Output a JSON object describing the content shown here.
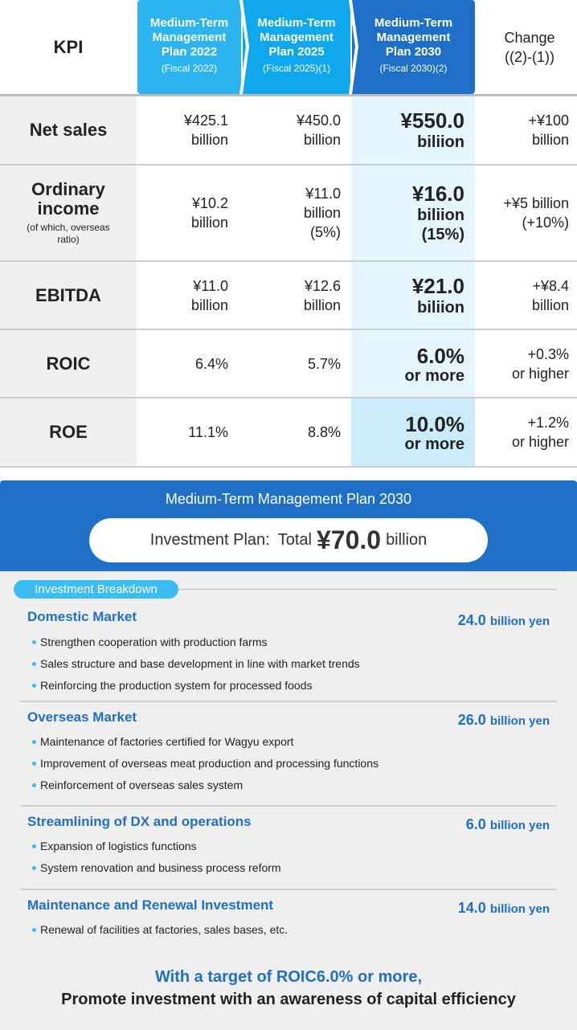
{
  "table": {
    "header": {
      "kpi": "KPI",
      "plans": [
        {
          "title": "Medium-Term Management Plan 2022",
          "sub": "(Fiscal 2022)",
          "color": "#2bb4f0"
        },
        {
          "title": "Medium-Term Management Plan 2025",
          "sub": "(Fiscal 2025)(1)",
          "color": "#10a8ec"
        },
        {
          "title": "Medium-Term Management Plan 2030",
          "sub": "(Fiscal 2030)(2)",
          "color": "#1e6fc8"
        }
      ],
      "change": "Change ((2)-(1))"
    },
    "rows": [
      {
        "kpi": "Net sales",
        "note": "",
        "v2022": [
          "¥425.1",
          "billion"
        ],
        "v2025": [
          "¥450.0",
          "billion"
        ],
        "v2030": [
          "¥550.0",
          "biliion"
        ],
        "change": [
          "+¥100",
          "billion"
        ]
      },
      {
        "kpi": "Ordinary income",
        "note": "(of which, overseas ratio)",
        "v2022": [
          "¥10.2",
          "billion"
        ],
        "v2025": [
          "¥11.0",
          "billion",
          "(5%)"
        ],
        "v2030": [
          "¥16.0",
          "biliion",
          "(15%)"
        ],
        "change": [
          "+¥5 billion",
          "(+10%)"
        ]
      },
      {
        "kpi": "EBITDA",
        "note": "",
        "v2022": [
          "¥11.0",
          "billion"
        ],
        "v2025": [
          "¥12.6",
          "billion"
        ],
        "v2030": [
          "¥21.0",
          "biliion"
        ],
        "change": [
          "+¥8.4",
          "billion"
        ]
      },
      {
        "kpi": "ROIC",
        "note": "",
        "v2022": [
          "6.4%"
        ],
        "v2025": [
          "5.7%"
        ],
        "v2030": [
          "6.0%",
          "or more"
        ],
        "change": [
          "+0.3%",
          "or higher"
        ]
      },
      {
        "kpi": "ROE",
        "note": "",
        "v2022": [
          "11.1%"
        ],
        "v2025": [
          "8.8%"
        ],
        "v2030": [
          "10.0%",
          "or more"
        ],
        "change": [
          "+1.2%",
          "or higher"
        ]
      }
    ]
  },
  "plan": {
    "title": "Medium-Term Management Plan 2030",
    "pill_label": "Investment Plan:",
    "pill_total": "Total",
    "pill_amount": "¥70.0",
    "pill_unit": "billion",
    "breakdown_label": "Investment Breakdown",
    "sections": [
      {
        "title": "Domestic Market",
        "amount": "24.0",
        "unit": "billion yen",
        "items": [
          "Strengthen cooperation with production farms",
          "Sales structure and base development in line with market trends",
          "Reinforcing the production system for processed foods"
        ]
      },
      {
        "title": "Overseas Market",
        "amount": "26.0",
        "unit": "billion yen",
        "items": [
          "Maintenance of factories certified for Wagyu export",
          "Improvement of overseas meat production and processing functions",
          "Reinforcement of overseas sales system"
        ]
      },
      {
        "title": "Streamlining of DX and operations",
        "amount": "6.0",
        "unit": "billion yen",
        "items": [
          "Expansion of logistics functions",
          "System renovation and business process reform"
        ]
      },
      {
        "title": "Maintenance and Renewal Investment",
        "amount": "14.0",
        "unit": "billion yen",
        "items": [
          "Renewal of facilities at factories, sales bases, etc."
        ]
      }
    ],
    "footer_line1": "With a target of ROIC6.0% or more,",
    "footer_line2": "Promote investment with an awareness of capital efficiency"
  }
}
